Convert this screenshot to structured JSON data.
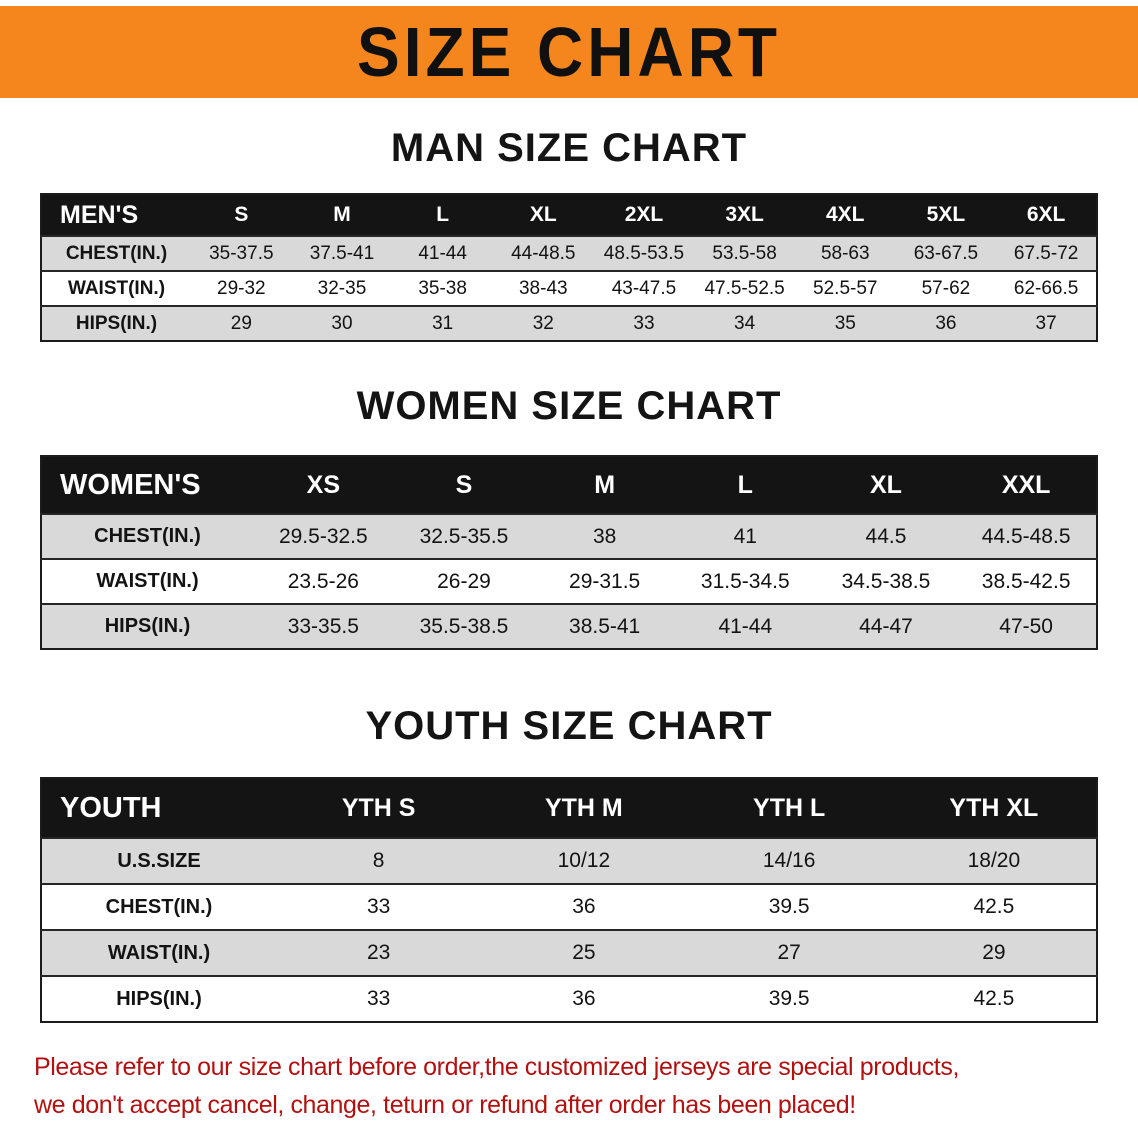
{
  "banner": {
    "title": "SIZE CHART",
    "bg_color": "#f5861d"
  },
  "colors": {
    "table_header_bg": "#141414",
    "row_stripe_gray": "#d9d9d9",
    "note_red": "#b11111"
  },
  "sections": {
    "men": {
      "heading": "MAN SIZE CHART",
      "table": {
        "header": [
          "MEN'S",
          "S",
          "M",
          "L",
          "XL",
          "2XL",
          "3XL",
          "4XL",
          "5XL",
          "6XL"
        ],
        "rows": [
          {
            "label": "CHEST(IN.)",
            "values": [
              "35-37.5",
              "37.5-41",
              "41-44",
              "44-48.5",
              "48.5-53.5",
              "53.5-58",
              "58-63",
              "63-67.5",
              "67.5-72"
            ]
          },
          {
            "label": "WAIST(IN.)",
            "values": [
              "29-32",
              "32-35",
              "35-38",
              "38-43",
              "43-47.5",
              "47.5-52.5",
              "52.5-57",
              "57-62",
              "62-66.5"
            ]
          },
          {
            "label": "HIPS(IN.)",
            "values": [
              "29",
              "30",
              "31",
              "32",
              "33",
              "34",
              "35",
              "36",
              "37"
            ]
          }
        ]
      }
    },
    "women": {
      "heading": "WOMEN SIZE CHART",
      "table": {
        "header": [
          "WOMEN'S",
          "XS",
          "S",
          "M",
          "L",
          "XL",
          "XXL"
        ],
        "rows": [
          {
            "label": "CHEST(IN.)",
            "values": [
              "29.5-32.5",
              "32.5-35.5",
              "38",
              "41",
              "44.5",
              "44.5-48.5"
            ]
          },
          {
            "label": "WAIST(IN.)",
            "values": [
              "23.5-26",
              "26-29",
              "29-31.5",
              "31.5-34.5",
              "34.5-38.5",
              "38.5-42.5"
            ]
          },
          {
            "label": "HIPS(IN.)",
            "values": [
              "33-35.5",
              "35.5-38.5",
              "38.5-41",
              "41-44",
              "44-47",
              "47-50"
            ]
          }
        ]
      }
    },
    "youth": {
      "heading": "YOUTH SIZE CHART",
      "table": {
        "header": [
          "YOUTH",
          "YTH S",
          "YTH M",
          "YTH L",
          "YTH XL"
        ],
        "rows": [
          {
            "label": "U.S.SIZE",
            "values": [
              "8",
              "10/12",
              "14/16",
              "18/20"
            ]
          },
          {
            "label": "CHEST(IN.)",
            "values": [
              "33",
              "36",
              "39.5",
              "42.5"
            ]
          },
          {
            "label": "WAIST(IN.)",
            "values": [
              "23",
              "25",
              "27",
              "29"
            ]
          },
          {
            "label": "HIPS(IN.)",
            "values": [
              "33",
              "36",
              "39.5",
              "42.5"
            ]
          }
        ]
      }
    }
  },
  "footer": {
    "line1": "Please refer to our size chart before order,the customized jerseys are special products,",
    "line2": "we don't accept cancel, change, teturn or refund after order has been placed!"
  }
}
